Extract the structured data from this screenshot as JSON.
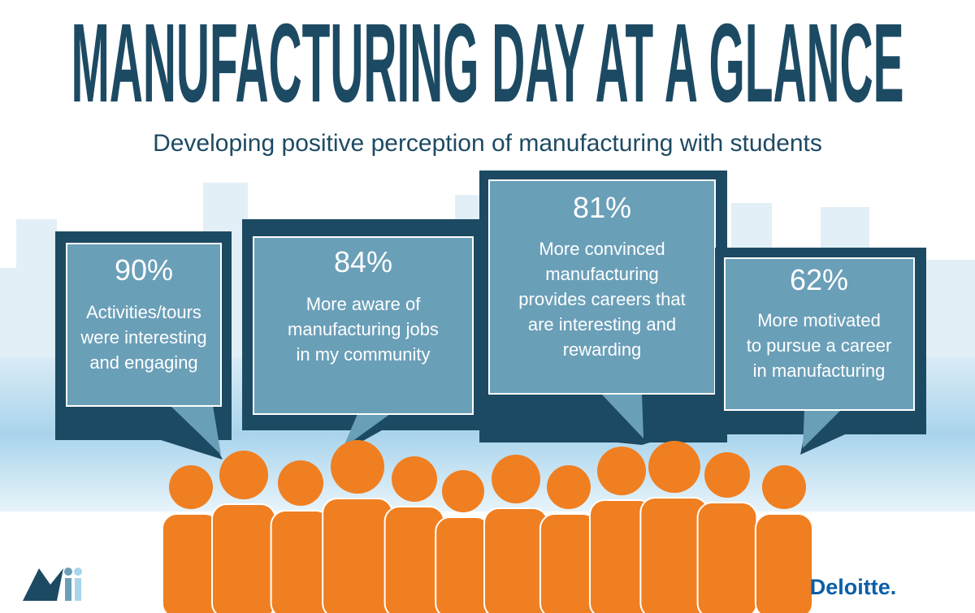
{
  "header": {
    "title": "MANUFACTURING DAY AT A GLANCE",
    "subtitle": "Developing positive perception of manufacturing with students"
  },
  "bubbles": [
    {
      "stat": "90%",
      "lines": [
        "Activities/tours",
        "were interesting",
        "and engaging"
      ]
    },
    {
      "stat": "84%",
      "lines": [
        "More aware of",
        "manufacturing jobs",
        "in my community"
      ]
    },
    {
      "stat": "81%",
      "lines": [
        "More convinced",
        "manufacturing",
        "provides careers that",
        "are interesting and",
        "rewarding"
      ]
    },
    {
      "stat": "62%",
      "lines": [
        "More motivated",
        "to pursue a career",
        "in manufacturing"
      ]
    }
  ],
  "footer": {
    "brand": "Deloitte."
  }
}
